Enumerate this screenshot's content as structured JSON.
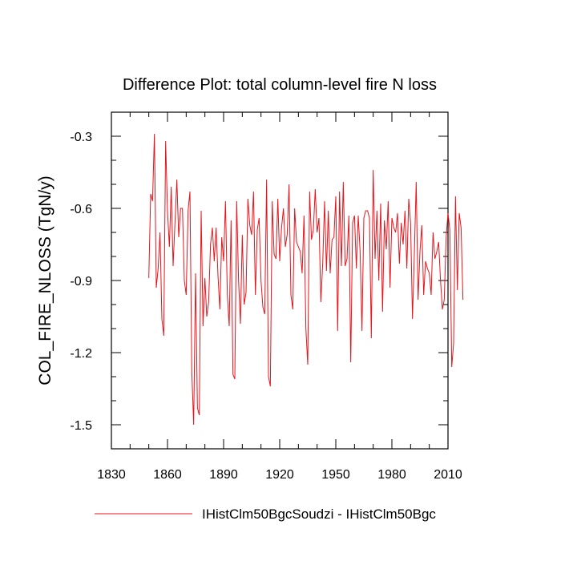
{
  "chart_data": {
    "type": "line",
    "title": "Difference Plot: total column-level fire N loss",
    "xlabel": "",
    "ylabel": "COL_FIRE_NLOSS  (TgN/y)",
    "xlim": [
      1830,
      2010
    ],
    "ylim": [
      -1.6,
      -0.2
    ],
    "x_ticks": [
      1830,
      1860,
      1890,
      1920,
      1950,
      1980,
      2010
    ],
    "y_ticks": [
      -1.5,
      -1.2,
      -0.9,
      -0.6,
      -0.3
    ],
    "x_tick_labels": [
      "1830",
      "1860",
      "1890",
      "1920",
      "1950",
      "1980",
      "2010"
    ],
    "y_tick_labels": [
      "-1.5",
      "-1.2",
      "-0.9",
      "-0.6",
      "-0.3"
    ],
    "grid": false,
    "legend_position": "bottom",
    "series": [
      {
        "name": "IHistClm50BgcSoudzi - IHistClm50Bgc",
        "color": "#e8141c",
        "x_start": 1850,
        "x_step": 1,
        "values": [
          -0.89,
          -0.54,
          -0.57,
          -0.29,
          -0.93,
          -0.85,
          -0.7,
          -1.06,
          -1.13,
          -0.32,
          -0.61,
          -0.76,
          -0.51,
          -0.84,
          -0.66,
          -0.48,
          -0.72,
          -0.6,
          -0.6,
          -0.9,
          -0.96,
          -0.61,
          -0.53,
          -1.28,
          -1.5,
          -0.87,
          -1.43,
          -1.46,
          -0.61,
          -1.09,
          -0.89,
          -1.05,
          -0.99,
          -0.75,
          -0.68,
          -0.82,
          -0.68,
          -0.88,
          -1.02,
          -0.72,
          -0.82,
          -0.57,
          -0.96,
          -1.09,
          -0.65,
          -1.29,
          -1.31,
          -0.57,
          -0.9,
          -1.08,
          -0.71,
          -1.0,
          -0.95,
          -0.56,
          -0.67,
          -0.71,
          -0.53,
          -0.96,
          -0.69,
          -0.64,
          -0.9,
          -1.01,
          -1.04,
          -0.48,
          -1.3,
          -1.34,
          -0.57,
          -0.79,
          -0.81,
          -0.56,
          -0.82,
          -0.68,
          -0.6,
          -0.76,
          -0.71,
          -0.5,
          -0.96,
          -1.02,
          -0.6,
          -0.74,
          -0.76,
          -0.78,
          -0.87,
          -0.63,
          -1.1,
          -1.25,
          -0.53,
          -0.73,
          -0.69,
          -0.52,
          -0.7,
          -0.64,
          -0.99,
          -0.83,
          -0.57,
          -0.86,
          -0.61,
          -0.87,
          -0.73,
          -0.72,
          -0.55,
          -1.11,
          -0.53,
          -0.84,
          -0.49,
          -0.84,
          -0.81,
          -0.63,
          -1.24,
          -0.66,
          -0.63,
          -0.85,
          -0.63,
          -0.78,
          -1.11,
          -0.64,
          -0.61,
          -0.61,
          -0.64,
          -1.14,
          -0.44,
          -0.81,
          -0.61,
          -0.9,
          -0.58,
          -1.03,
          -0.65,
          -0.77,
          -0.57,
          -0.93,
          -0.64,
          -0.68,
          -0.7,
          -0.62,
          -0.83,
          -0.66,
          -0.75,
          -0.61,
          -0.85,
          -0.56,
          -0.66,
          -1.06,
          -0.79,
          -0.49,
          -0.98,
          -0.78,
          -0.67,
          -0.96,
          -0.82,
          -0.85,
          -0.87,
          -0.96,
          -0.7,
          -0.81,
          -0.78,
          -0.74,
          -0.9,
          -1.02,
          -0.98,
          -0.72,
          -0.62,
          -0.69,
          -1.26,
          -1.16,
          -0.55,
          -0.94,
          -0.62,
          -0.68,
          -0.98
        ]
      }
    ]
  }
}
